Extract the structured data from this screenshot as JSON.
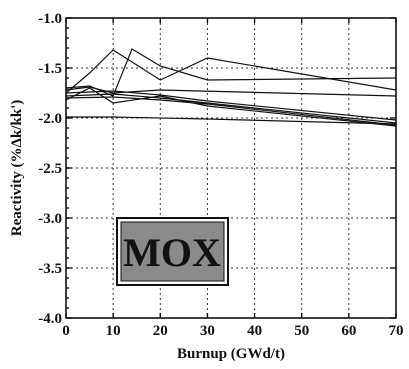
{
  "chart_data": {
    "type": "line",
    "xlabel": "Burnup (GWd/t)",
    "ylabel": "Reactivity (%Δk/kk')",
    "xlim": [
      0,
      70
    ],
    "ylim": [
      -4.0,
      -1.0
    ],
    "x_ticks": [
      "0",
      "10",
      "20",
      "30",
      "40",
      "50",
      "60",
      "70"
    ],
    "y_ticks": [
      "-1.0",
      "-1.5",
      "-2.0",
      "-2.5",
      "-3.0",
      "-3.5",
      "-4.0"
    ],
    "grid": true,
    "annotation": "MOX",
    "series": [
      {
        "x": [
          0,
          5,
          10,
          20,
          30,
          70
        ],
        "y": [
          -1.75,
          -1.55,
          -1.32,
          -1.62,
          -1.4,
          -1.72
        ]
      },
      {
        "x": [
          0,
          5,
          10,
          14,
          20,
          30,
          70
        ],
        "y": [
          -1.7,
          -1.68,
          -1.78,
          -1.31,
          -1.48,
          -1.62,
          -1.6
        ]
      },
      {
        "x": [
          0,
          5,
          10,
          20,
          70
        ],
        "y": [
          -1.72,
          -1.69,
          -1.75,
          -1.72,
          -1.78
        ]
      },
      {
        "x": [
          0,
          10,
          20,
          30,
          70
        ],
        "y": [
          -1.75,
          -1.73,
          -1.77,
          -1.83,
          -2.02
        ]
      },
      {
        "x": [
          0,
          10,
          20,
          30,
          70
        ],
        "y": [
          -1.78,
          -1.76,
          -1.8,
          -1.85,
          -2.05
        ]
      },
      {
        "x": [
          0,
          10,
          20,
          30,
          70
        ],
        "y": [
          -1.8,
          -1.79,
          -1.82,
          -1.86,
          -2.07
        ]
      },
      {
        "x": [
          0,
          5,
          10,
          20,
          30,
          70
        ],
        "y": [
          -1.82,
          -1.7,
          -1.85,
          -1.78,
          -1.88,
          -2.08
        ]
      },
      {
        "x": [
          0,
          10,
          30,
          70
        ],
        "y": [
          -1.99,
          -1.99,
          -2.01,
          -2.06
        ]
      }
    ]
  }
}
